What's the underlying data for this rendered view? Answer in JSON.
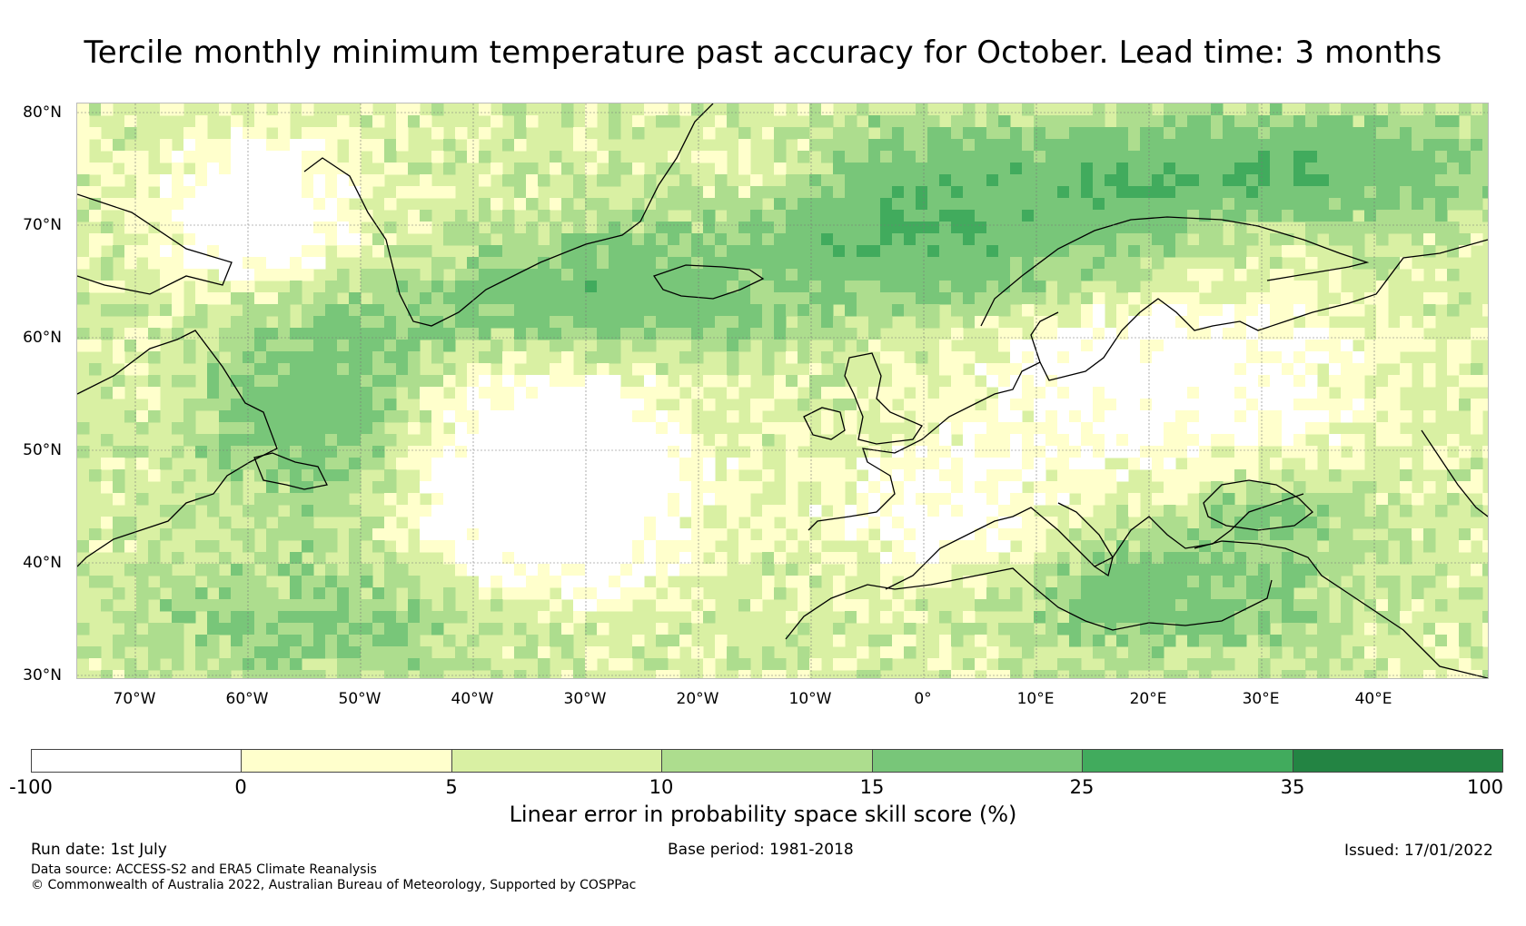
{
  "title": "Tercile monthly minimum temperature past accuracy for October. Lead time: 3 months",
  "map": {
    "region": "North Atlantic and Europe",
    "latitude_labels": [
      "80°N",
      "70°N",
      "60°N",
      "50°N",
      "40°N",
      "30°N"
    ],
    "longitude_labels": [
      "70°W",
      "60°W",
      "50°W",
      "40°W",
      "30°W",
      "20°W",
      "10°W",
      "0°",
      "10°E",
      "20°E",
      "30°E",
      "40°E"
    ],
    "gridlines": true,
    "coastlines": true
  },
  "colorbar": {
    "label": "Linear error in probability space skill score (%)",
    "tick_labels": [
      "-100",
      "0",
      "5",
      "10",
      "15",
      "25",
      "35",
      "100"
    ],
    "colors": [
      "#ffffff",
      "#ffffcc",
      "#d9f0a3",
      "#addd8e",
      "#78c679",
      "#41ab5d",
      "#238443"
    ]
  },
  "footer": {
    "run_date": "Run date: 1st July",
    "base_period": "Base period: 1981-2018",
    "issued": "Issued: 17/01/2022",
    "data_source": "Data source: ACCESS-S2 and ERA5 Climate Reanalysis",
    "copyright": "© Commonwealth of Australia 2022, Australian Bureau of Meteorology, Supported by COSPPac"
  }
}
